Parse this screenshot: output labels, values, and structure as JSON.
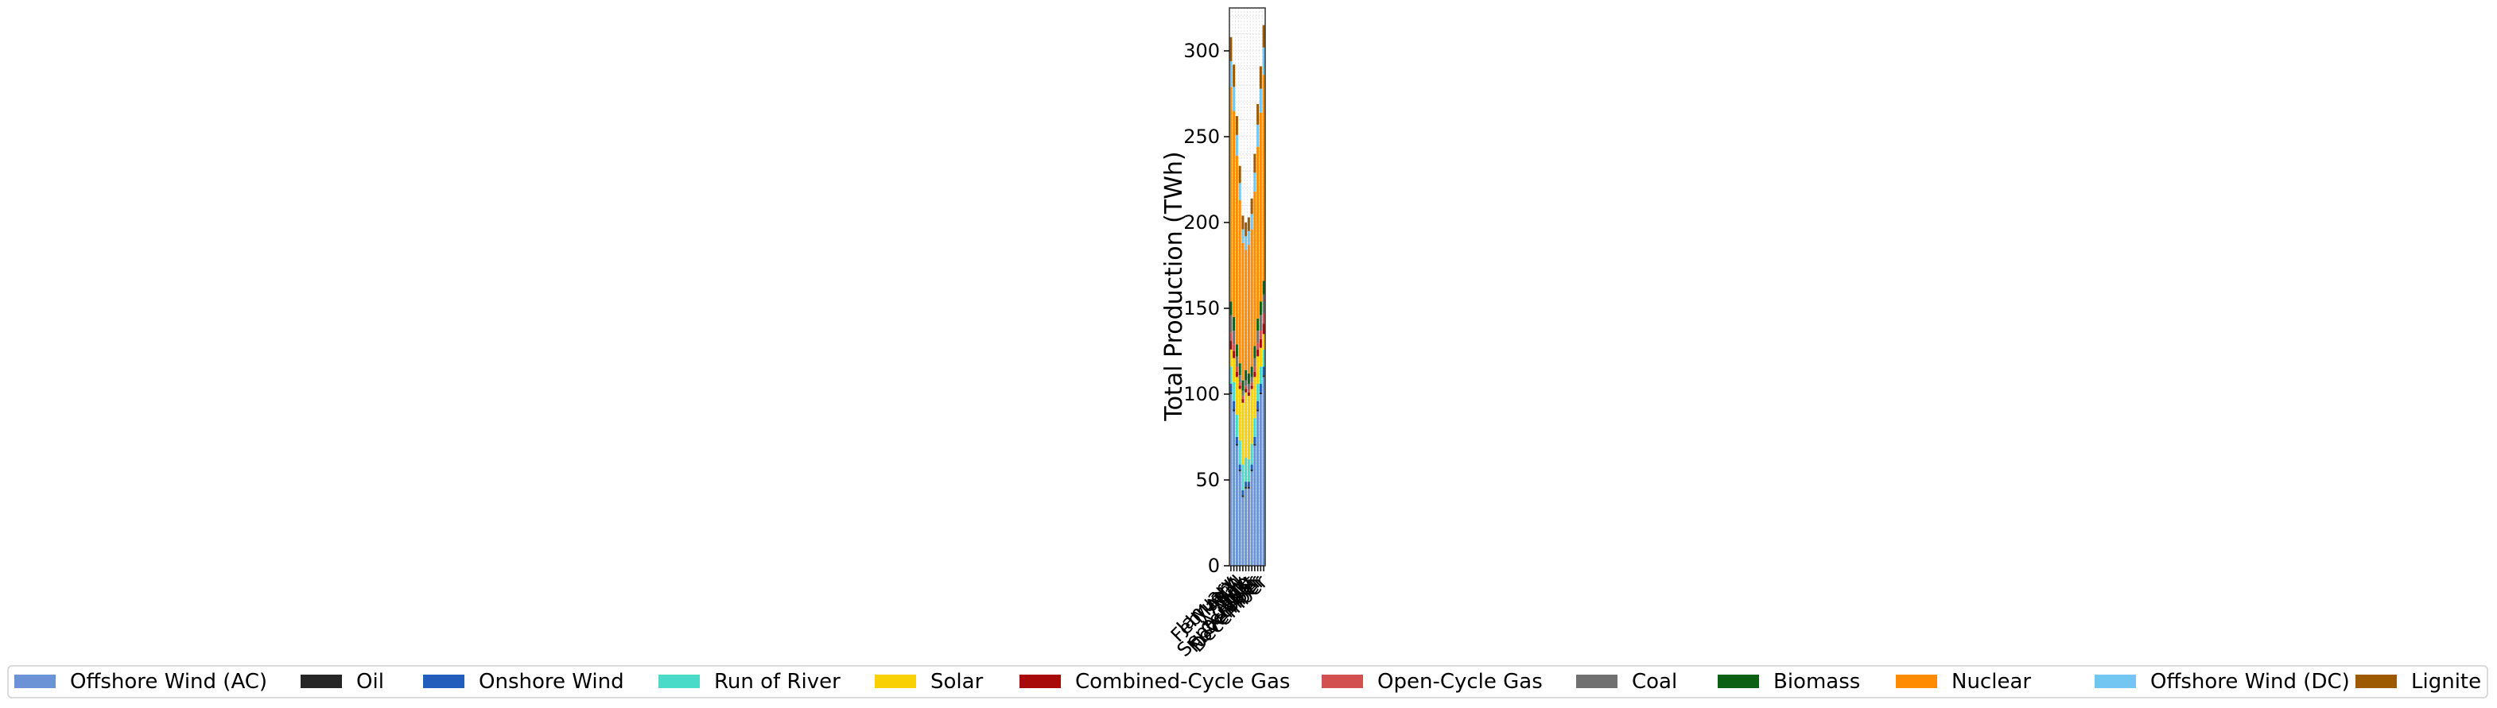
{
  "chart_data": {
    "type": "bar",
    "stacked": true,
    "title": "",
    "xlabel": "",
    "ylabel": "Total Production (TWh)",
    "ylim": [
      0,
      325
    ],
    "yticks": [
      0,
      50,
      100,
      150,
      200,
      250,
      300
    ],
    "grid": true,
    "legend_placement": "bottom",
    "categories": [
      "January",
      "February",
      "March",
      "April",
      "May",
      "June",
      "July",
      "August",
      "September",
      "October",
      "November",
      "December"
    ],
    "series": [
      {
        "name": "Offshore Wind (AC)",
        "color": "#6b93d6",
        "values": [
          100,
          90,
          70,
          55,
          40,
          45,
          45,
          55,
          70,
          90,
          100,
          110
        ]
      },
      {
        "name": "Oil",
        "color": "#262626",
        "values": [
          1,
          1,
          1,
          1,
          1,
          1,
          1,
          1,
          1,
          1,
          1,
          1
        ]
      },
      {
        "name": "Onshore Wind",
        "color": "#235ebc",
        "values": [
          5,
          5,
          4,
          3,
          3,
          3,
          3,
          3,
          4,
          5,
          5,
          5
        ]
      },
      {
        "name": "Run of River",
        "color": "#4adbc8",
        "values": [
          10,
          11,
          13,
          14,
          15,
          14,
          13,
          12,
          11,
          10,
          10,
          10
        ]
      },
      {
        "name": "Solar",
        "color": "#f9d002",
        "values": [
          10,
          14,
          22,
          30,
          36,
          38,
          37,
          32,
          24,
          16,
          11,
          9
        ]
      },
      {
        "name": "Combined-Cycle Gas",
        "color": "#a80a0a",
        "values": [
          5,
          4,
          3,
          2,
          2,
          2,
          2,
          2,
          3,
          4,
          5,
          6
        ]
      },
      {
        "name": "Open-Cycle Gas",
        "color": "#d35050",
        "values": [
          5,
          4,
          3,
          2,
          2,
          2,
          2,
          2,
          3,
          4,
          5,
          6
        ]
      },
      {
        "name": "Coal",
        "color": "#707070",
        "values": [
          10,
          8,
          6,
          4,
          3,
          3,
          3,
          3,
          5,
          7,
          9,
          11
        ]
      },
      {
        "name": "Biomass",
        "color": "#0c6013",
        "values": [
          8,
          8,
          7,
          7,
          6,
          6,
          6,
          6,
          7,
          7,
          8,
          8
        ]
      },
      {
        "name": "Nuclear",
        "color": "#ff8c00",
        "values": [
          125,
          120,
          110,
          95,
          80,
          70,
          75,
          80,
          90,
          100,
          110,
          120
        ]
      },
      {
        "name": "Offshore Wind (DC)",
        "color": "#74c6f2",
        "values": [
          15,
          14,
          12,
          10,
          8,
          8,
          8,
          9,
          11,
          13,
          14,
          16
        ]
      },
      {
        "name": "Lignite",
        "color": "#9e5a01",
        "values": [
          14,
          13,
          11,
          10,
          8,
          8,
          8,
          9,
          11,
          12,
          13,
          13
        ]
      }
    ]
  }
}
